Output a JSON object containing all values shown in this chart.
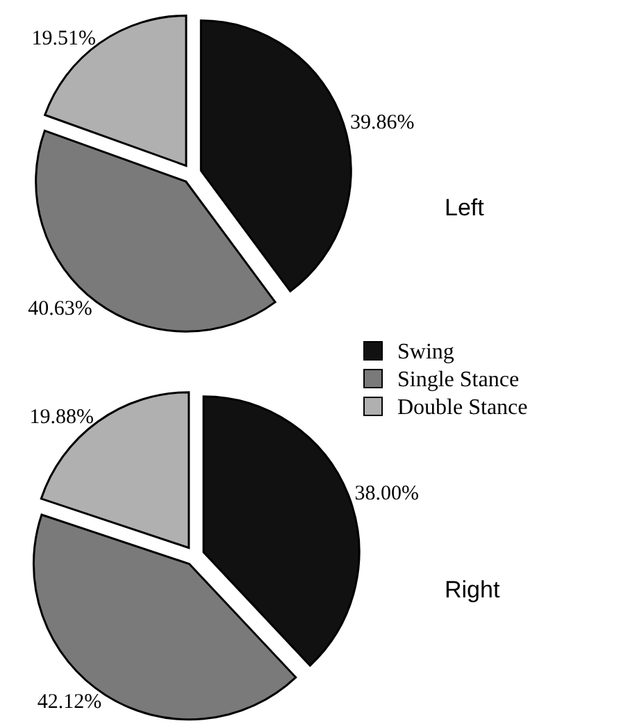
{
  "chart_data": [
    {
      "type": "pie",
      "title": "Left",
      "categories": [
        "Swing",
        "Single Stance",
        "Double Stance"
      ],
      "values": [
        39.86,
        40.63,
        19.51
      ],
      "value_labels": [
        "39.86%",
        "40.63%",
        "19.51%"
      ],
      "colors": [
        "#111111",
        "#7a7a7a",
        "#b0b0b0"
      ],
      "legend": "right"
    },
    {
      "type": "pie",
      "title": "Right",
      "categories": [
        null,
        null,
        null
      ],
      "values": [
        38.0,
        42.12,
        19.88
      ],
      "value_labels": [
        "38.00%",
        "42.12%",
        "19.88%"
      ],
      "colors": [
        "#111111",
        "#7a7a7a",
        "#b0b0b0"
      ]
    }
  ]
}
